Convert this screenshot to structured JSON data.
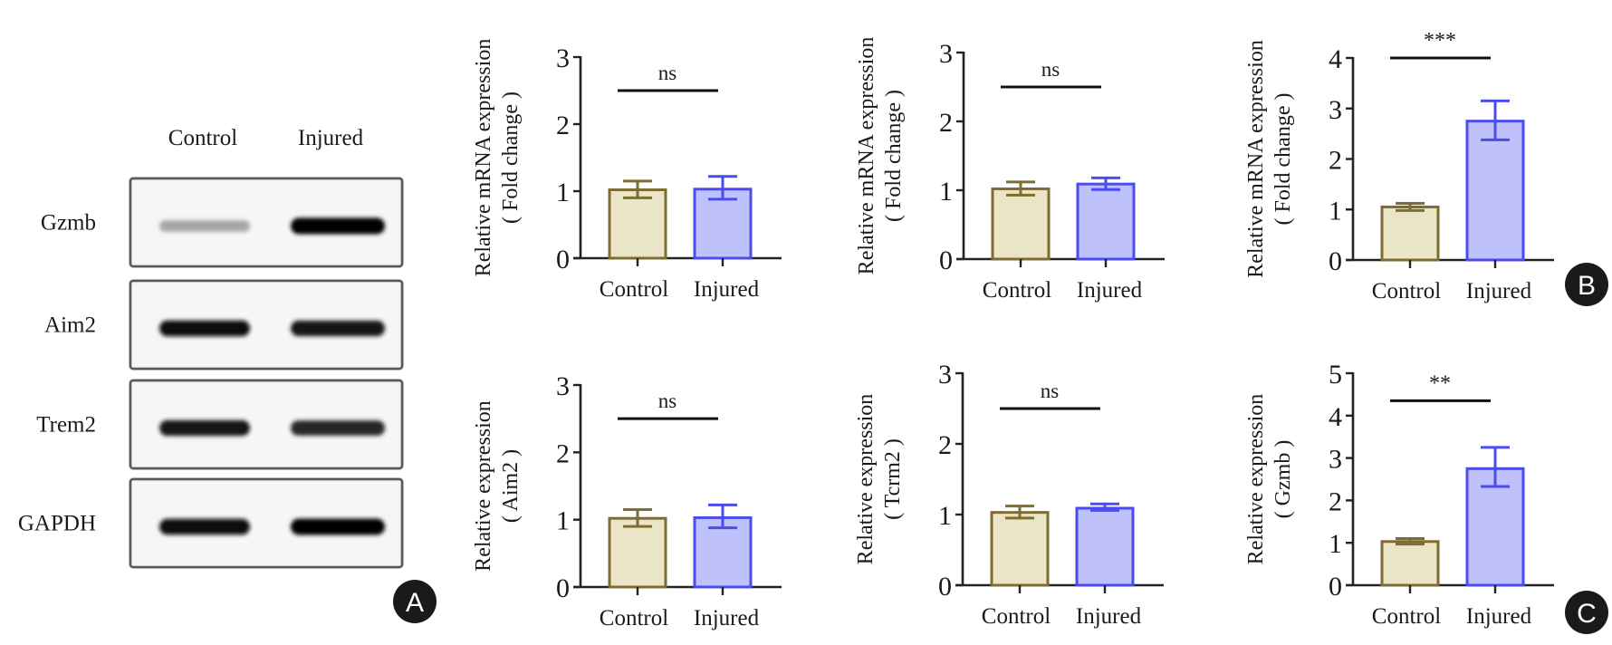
{
  "figure": {
    "panel_labels": {
      "a": "A",
      "b": "B",
      "c": "C"
    }
  },
  "western_blot": {
    "lanes": [
      "Control",
      "Injured"
    ],
    "rows": [
      {
        "label": "Gzmb",
        "band_intensity": [
          0.35,
          1.0
        ]
      },
      {
        "label": "Aim2",
        "band_intensity": [
          0.95,
          0.9
        ]
      },
      {
        "label": "Trem2",
        "band_intensity": [
          0.9,
          0.85
        ]
      },
      {
        "label": "GAPDH",
        "band_intensity": [
          0.95,
          1.0
        ]
      }
    ]
  },
  "colors": {
    "control_fill": "#ebe5c8",
    "control_stroke": "#7f6c33",
    "injured_fill": "#bfc1fb",
    "injured_stroke": "#4b4cf0",
    "axis": "#222222",
    "badge": "#1a1a1a"
  },
  "chart_data": [
    {
      "id": "mrna-1",
      "type": "bar",
      "title": "",
      "ylabel": [
        "Relative mRNA expression",
        "( Fold change )"
      ],
      "xlabel": "",
      "categories": [
        "Control",
        "Injured"
      ],
      "values": [
        1.02,
        1.03
      ],
      "error_low": [
        0.9,
        0.88
      ],
      "error_high": [
        1.15,
        1.22
      ],
      "ylim": [
        0,
        3
      ],
      "yticks": [
        0,
        1,
        2,
        3
      ],
      "significance": {
        "label": "ns",
        "y": 2.5
      },
      "grid": false,
      "legend": "none"
    },
    {
      "id": "mrna-2",
      "type": "bar",
      "title": "",
      "ylabel": [
        "Relative mRNA expression",
        "( Fold change )"
      ],
      "xlabel": "",
      "categories": [
        "Control",
        "Injured"
      ],
      "values": [
        1.02,
        1.09
      ],
      "error_low": [
        0.93,
        1.01
      ],
      "error_high": [
        1.12,
        1.18
      ],
      "ylim": [
        0,
        3
      ],
      "yticks": [
        0,
        1,
        2,
        3
      ],
      "significance": {
        "label": "ns",
        "y": 2.5
      },
      "grid": false,
      "legend": "none"
    },
    {
      "id": "mrna-3",
      "type": "bar",
      "title": "",
      "ylabel": [
        "Relative mRNA expression",
        "( Fold change )"
      ],
      "xlabel": "",
      "categories": [
        "Control",
        "Injured"
      ],
      "values": [
        1.05,
        2.75
      ],
      "error_low": [
        0.98,
        2.38
      ],
      "error_high": [
        1.12,
        3.15
      ],
      "ylim": [
        0,
        4
      ],
      "yticks": [
        0,
        1,
        2,
        3,
        4
      ],
      "significance": {
        "label": "***",
        "y": 4.0
      },
      "grid": false,
      "legend": "none",
      "panel": "B"
    },
    {
      "id": "protein-aim2",
      "type": "bar",
      "title": "",
      "ylabel": [
        "Relative expression",
        "( Aim2 )"
      ],
      "xlabel": "",
      "categories": [
        "Control",
        "Injured"
      ],
      "values": [
        1.02,
        1.03
      ],
      "error_low": [
        0.9,
        0.88
      ],
      "error_high": [
        1.15,
        1.22
      ],
      "ylim": [
        0,
        3
      ],
      "yticks": [
        0,
        1,
        2,
        3
      ],
      "significance": {
        "label": "ns",
        "y": 2.5
      },
      "grid": false,
      "legend": "none"
    },
    {
      "id": "protein-trem2",
      "type": "bar",
      "title": "",
      "ylabel": [
        "Relative expression",
        "( Tcrm2 )"
      ],
      "xlabel": "",
      "categories": [
        "Control",
        "Injured"
      ],
      "values": [
        1.03,
        1.09
      ],
      "error_low": [
        0.95,
        1.06
      ],
      "error_high": [
        1.12,
        1.15
      ],
      "ylim": [
        0,
        3
      ],
      "yticks": [
        0,
        1,
        2,
        3
      ],
      "significance": {
        "label": "ns",
        "y": 2.5
      },
      "grid": false,
      "legend": "none"
    },
    {
      "id": "protein-gzmb",
      "type": "bar",
      "title": "",
      "ylabel": [
        "Relative expression",
        "( Gzmb )"
      ],
      "xlabel": "",
      "categories": [
        "Control",
        "Injured"
      ],
      "values": [
        1.03,
        2.75
      ],
      "error_low": [
        0.97,
        2.33
      ],
      "error_high": [
        1.1,
        3.25
      ],
      "ylim": [
        0,
        5
      ],
      "yticks": [
        0,
        1,
        2,
        3,
        4,
        5
      ],
      "significance": {
        "label": "**",
        "y": 4.35
      },
      "grid": false,
      "legend": "none",
      "panel": "C"
    }
  ]
}
